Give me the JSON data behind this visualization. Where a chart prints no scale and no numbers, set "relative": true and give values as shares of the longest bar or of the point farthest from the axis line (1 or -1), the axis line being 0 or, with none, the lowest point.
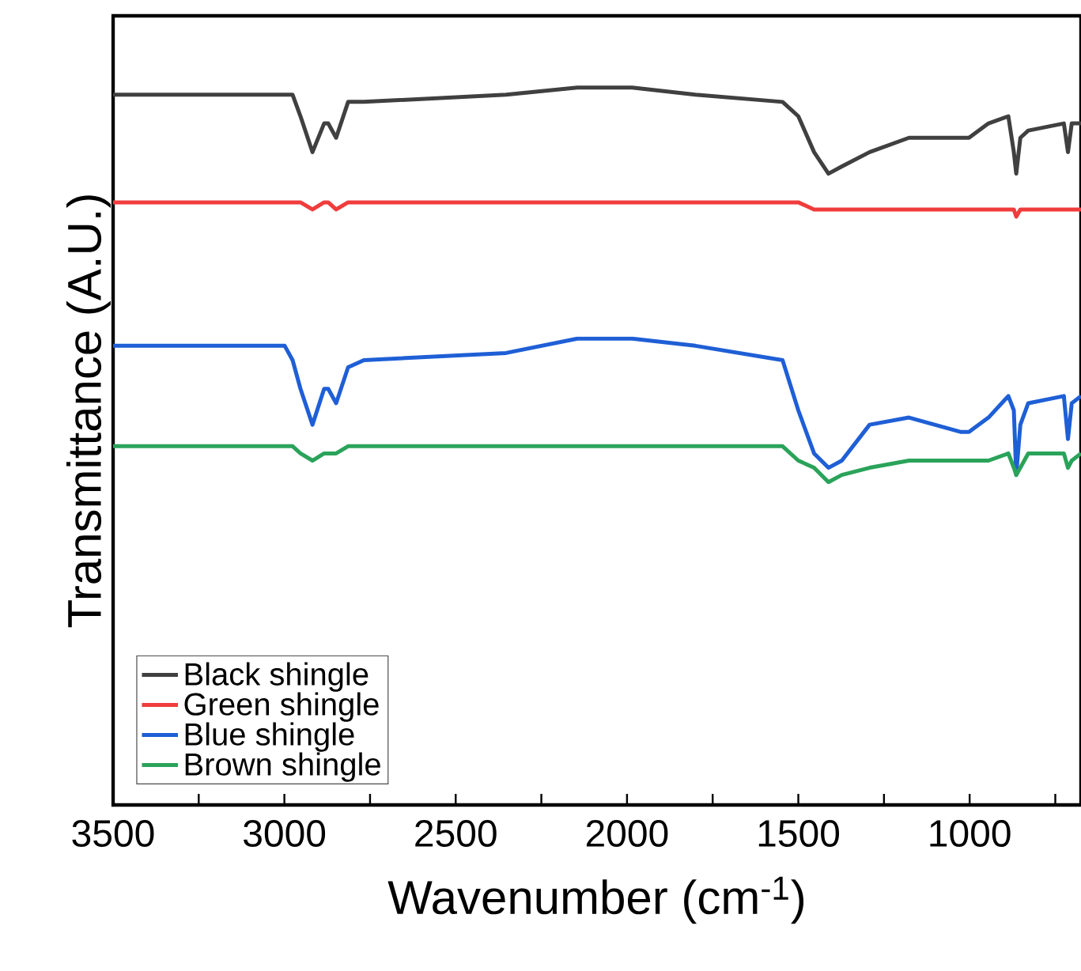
{
  "chart_data": {
    "type": "line",
    "relative": true,
    "xlabel": "Wavenumber (cm$^{-1}$)",
    "ylabel": "Transmittance (A.U.)",
    "x": [
      3500,
      2999,
      2976,
      2953,
      2918,
      2884,
      2872,
      2849,
      2814,
      2768,
      2353,
      2145,
      1985,
      1800,
      1546,
      1500,
      1454,
      1412,
      1373,
      1292,
      1177,
      1027,
      1002,
      945,
      887,
      871,
      864,
      852,
      829,
      725,
      713,
      702,
      675
    ],
    "xlim": [
      3500,
      675
    ],
    "xticks": [
      3500,
      {
        "value": 3250,
        "label": null
      },
      3000,
      {
        "value": 2750,
        "label": null
      },
      2500,
      {
        "value": 2250,
        "label": null
      },
      2000,
      {
        "value": 1750,
        "label": null
      },
      1500,
      {
        "value": 1250,
        "label": null
      },
      1000,
      {
        "value": 750,
        "label": null
      }
    ],
    "series": [
      {
        "name": "Black shingle",
        "color": "#404040",
        "values": [
          0.99,
          0.99,
          0.99,
          0.96,
          0.91,
          0.95,
          0.95,
          0.93,
          0.98,
          0.98,
          0.99,
          1.0,
          1.0,
          0.99,
          0.98,
          0.96,
          0.91,
          0.88,
          0.89,
          0.91,
          0.93,
          0.93,
          0.93,
          0.95,
          0.96,
          0.91,
          0.88,
          0.93,
          0.94,
          0.95,
          0.91,
          0.95,
          0.95
        ]
      },
      {
        "name": "Green shingle",
        "color": "#f03c3c",
        "values": [
          0.84,
          0.84,
          0.84,
          0.84,
          0.83,
          0.84,
          0.84,
          0.83,
          0.84,
          0.84,
          0.84,
          0.84,
          0.84,
          0.84,
          0.84,
          0.84,
          0.83,
          0.83,
          0.83,
          0.83,
          0.83,
          0.83,
          0.83,
          0.83,
          0.83,
          0.83,
          0.82,
          0.83,
          0.83,
          0.83,
          0.83,
          0.83,
          0.83
        ]
      },
      {
        "name": "Blue shingle",
        "color": "#1f5fd6",
        "values": [
          0.64,
          0.64,
          0.62,
          0.58,
          0.53,
          0.58,
          0.58,
          0.56,
          0.61,
          0.62,
          0.63,
          0.65,
          0.65,
          0.64,
          0.62,
          0.55,
          0.49,
          0.47,
          0.48,
          0.53,
          0.54,
          0.52,
          0.52,
          0.54,
          0.57,
          0.55,
          0.46,
          0.53,
          0.56,
          0.57,
          0.51,
          0.56,
          0.57
        ]
      },
      {
        "name": "Brown shingle",
        "color": "#2aa35a",
        "values": [
          0.5,
          0.5,
          0.5,
          0.49,
          0.48,
          0.49,
          0.49,
          0.49,
          0.5,
          0.5,
          0.5,
          0.5,
          0.5,
          0.5,
          0.5,
          0.48,
          0.47,
          0.45,
          0.46,
          0.47,
          0.48,
          0.48,
          0.48,
          0.48,
          0.49,
          0.47,
          0.46,
          0.47,
          0.49,
          0.49,
          0.47,
          0.48,
          0.49
        ]
      }
    ],
    "legend": "bottom left",
    "marker": "none",
    "line_style": "solid",
    "grid": false
  }
}
